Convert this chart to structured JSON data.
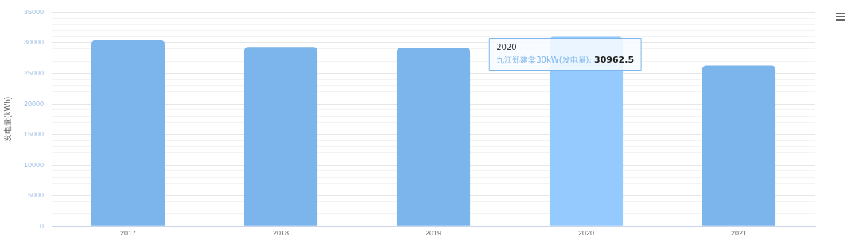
{
  "chart_data": {
    "type": "bar",
    "ylabel": "发电量(kWh)",
    "categories": [
      "2017",
      "2018",
      "2019",
      "2020",
      "2021"
    ],
    "series": [
      {
        "name": "九江郑建棠30kW(发电量):",
        "color": "#7cb5ec",
        "colors": [
          "#7cb5ec",
          "#7cb5ec",
          "#7cb5ec",
          "#95caff",
          "#7cb5ec"
        ],
        "values": [
          30400,
          29300,
          29200,
          30962.5,
          26300
        ],
        "value_labels": [
          null,
          null,
          null,
          "30962.5",
          null
        ]
      }
    ],
    "ylim": [
      0,
      35000
    ],
    "yticks": [
      0,
      {
        "value": 1000,
        "label": null
      },
      {
        "value": 2000,
        "label": null
      },
      {
        "value": 3000,
        "label": null
      },
      {
        "value": 4000,
        "label": null
      },
      5000,
      {
        "value": 6000,
        "label": null
      },
      {
        "value": 7000,
        "label": null
      },
      {
        "value": 8000,
        "label": null
      },
      {
        "value": 9000,
        "label": null
      },
      10000,
      {
        "value": 11000,
        "label": null
      },
      {
        "value": 12000,
        "label": null
      },
      {
        "value": 13000,
        "label": null
      },
      {
        "value": 14000,
        "label": null
      },
      15000,
      {
        "value": 16000,
        "label": null
      },
      {
        "value": 17000,
        "label": null
      },
      {
        "value": 18000,
        "label": null
      },
      {
        "value": 19000,
        "label": null
      },
      20000,
      {
        "value": 21000,
        "label": null
      },
      {
        "value": 22000,
        "label": null
      },
      {
        "value": 23000,
        "label": null
      },
      {
        "value": 24000,
        "label": null
      },
      25000,
      {
        "value": 26000,
        "label": null
      },
      {
        "value": 27000,
        "label": null
      },
      {
        "value": 28000,
        "label": null
      },
      {
        "value": 29000,
        "label": null
      },
      30000,
      {
        "value": 31000,
        "label": null
      },
      {
        "value": 32000,
        "label": null
      },
      {
        "value": 33000,
        "label": null
      },
      {
        "value": 34000,
        "label": null
      },
      35000
    ],
    "grid": "y",
    "legend": false
  }
}
